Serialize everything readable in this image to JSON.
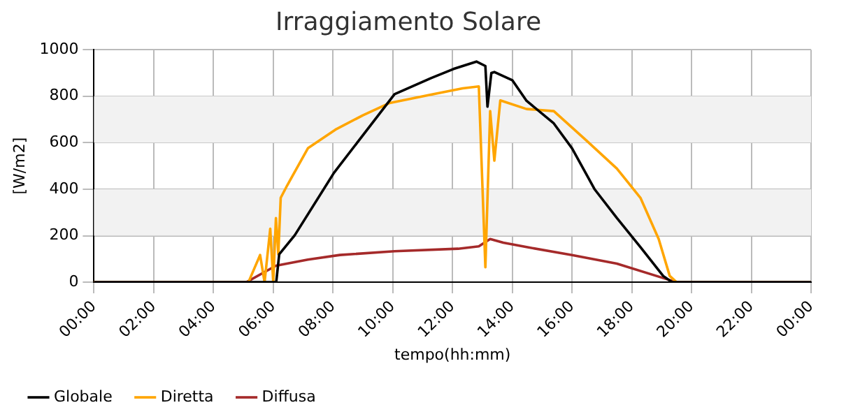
{
  "chart_data": {
    "type": "line",
    "title": "Irraggiamento Solare",
    "xlabel": "tempo(hh:mm)",
    "ylabel": "[W/m2]",
    "xlim": [
      0,
      24
    ],
    "xticks": [
      {
        "value": 0,
        "label": "00:00"
      },
      {
        "value": 2,
        "label": "02:00"
      },
      {
        "value": 4,
        "label": "04:00"
      },
      {
        "value": 6,
        "label": "06:00"
      },
      {
        "value": 8,
        "label": "08:00"
      },
      {
        "value": 10,
        "label": "10:00"
      },
      {
        "value": 12,
        "label": "12:00"
      },
      {
        "value": 14,
        "label": "14:00"
      },
      {
        "value": 16,
        "label": "16:00"
      },
      {
        "value": 18,
        "label": "18:00"
      },
      {
        "value": 20,
        "label": "20:00"
      },
      {
        "value": 22,
        "label": "22:00"
      },
      {
        "value": 24,
        "label": "00:00"
      }
    ],
    "ylim": [
      0,
      1000
    ],
    "yticks": [
      0,
      200,
      400,
      600,
      800,
      1000
    ],
    "grid": true,
    "legend": "bottom left",
    "marker": "none",
    "line_style": "solid",
    "bands": [
      {
        "axis": "y",
        "from": 200,
        "to": 400,
        "color": "#f2f2f2"
      },
      {
        "axis": "y",
        "from": 600,
        "to": 800,
        "color": "#f2f2f2"
      }
    ],
    "series": [
      {
        "name": "Globale",
        "color": "#000000",
        "x": [
          0,
          6.1,
          6.2,
          6.72,
          8.03,
          10.06,
          11.28,
          12.03,
          12.8,
          13.1,
          13.17,
          13.3,
          13.4,
          14.0,
          14.48,
          15.39,
          16.0,
          16.76,
          17.5,
          18.29,
          19.05,
          19.35,
          24
        ],
        "values": [
          0,
          0,
          120,
          202,
          470,
          809,
          878,
          917,
          949,
          930,
          755,
          900,
          904,
          869,
          780,
          683,
          576,
          399,
          276,
          151,
          27,
          0,
          0
        ]
      },
      {
        "name": "Diretta",
        "color": "#ffa500",
        "x": [
          0,
          5.17,
          5.56,
          5.71,
          5.9,
          6.0,
          6.09,
          6.17,
          6.25,
          6.47,
          7.16,
          8.08,
          9.0,
          9.9,
          11.28,
          12.34,
          12.88,
          13.1,
          13.26,
          13.4,
          13.6,
          14.48,
          15.39,
          16.46,
          17.5,
          18.29,
          18.9,
          19.27,
          19.5,
          24
        ],
        "values": [
          0,
          0,
          117,
          0,
          230,
          0,
          276,
          120,
          363,
          417,
          576,
          656,
          718,
          771,
          807,
          834,
          842,
          64,
          736,
          523,
          782,
          745,
          736,
          612,
          489,
          363,
          186,
          27,
          0,
          0
        ]
      },
      {
        "name": "Diffusa",
        "color": "#a52a2a",
        "x": [
          0,
          5.1,
          6.09,
          7.16,
          8.23,
          10.06,
          12.19,
          12.88,
          13.26,
          13.7,
          14.48,
          16.0,
          17.5,
          19.05,
          19.5,
          24
        ],
        "values": [
          0,
          0,
          71,
          97,
          117,
          133,
          144,
          154,
          186,
          170,
          151,
          117,
          80,
          18,
          0,
          0
        ]
      }
    ]
  }
}
